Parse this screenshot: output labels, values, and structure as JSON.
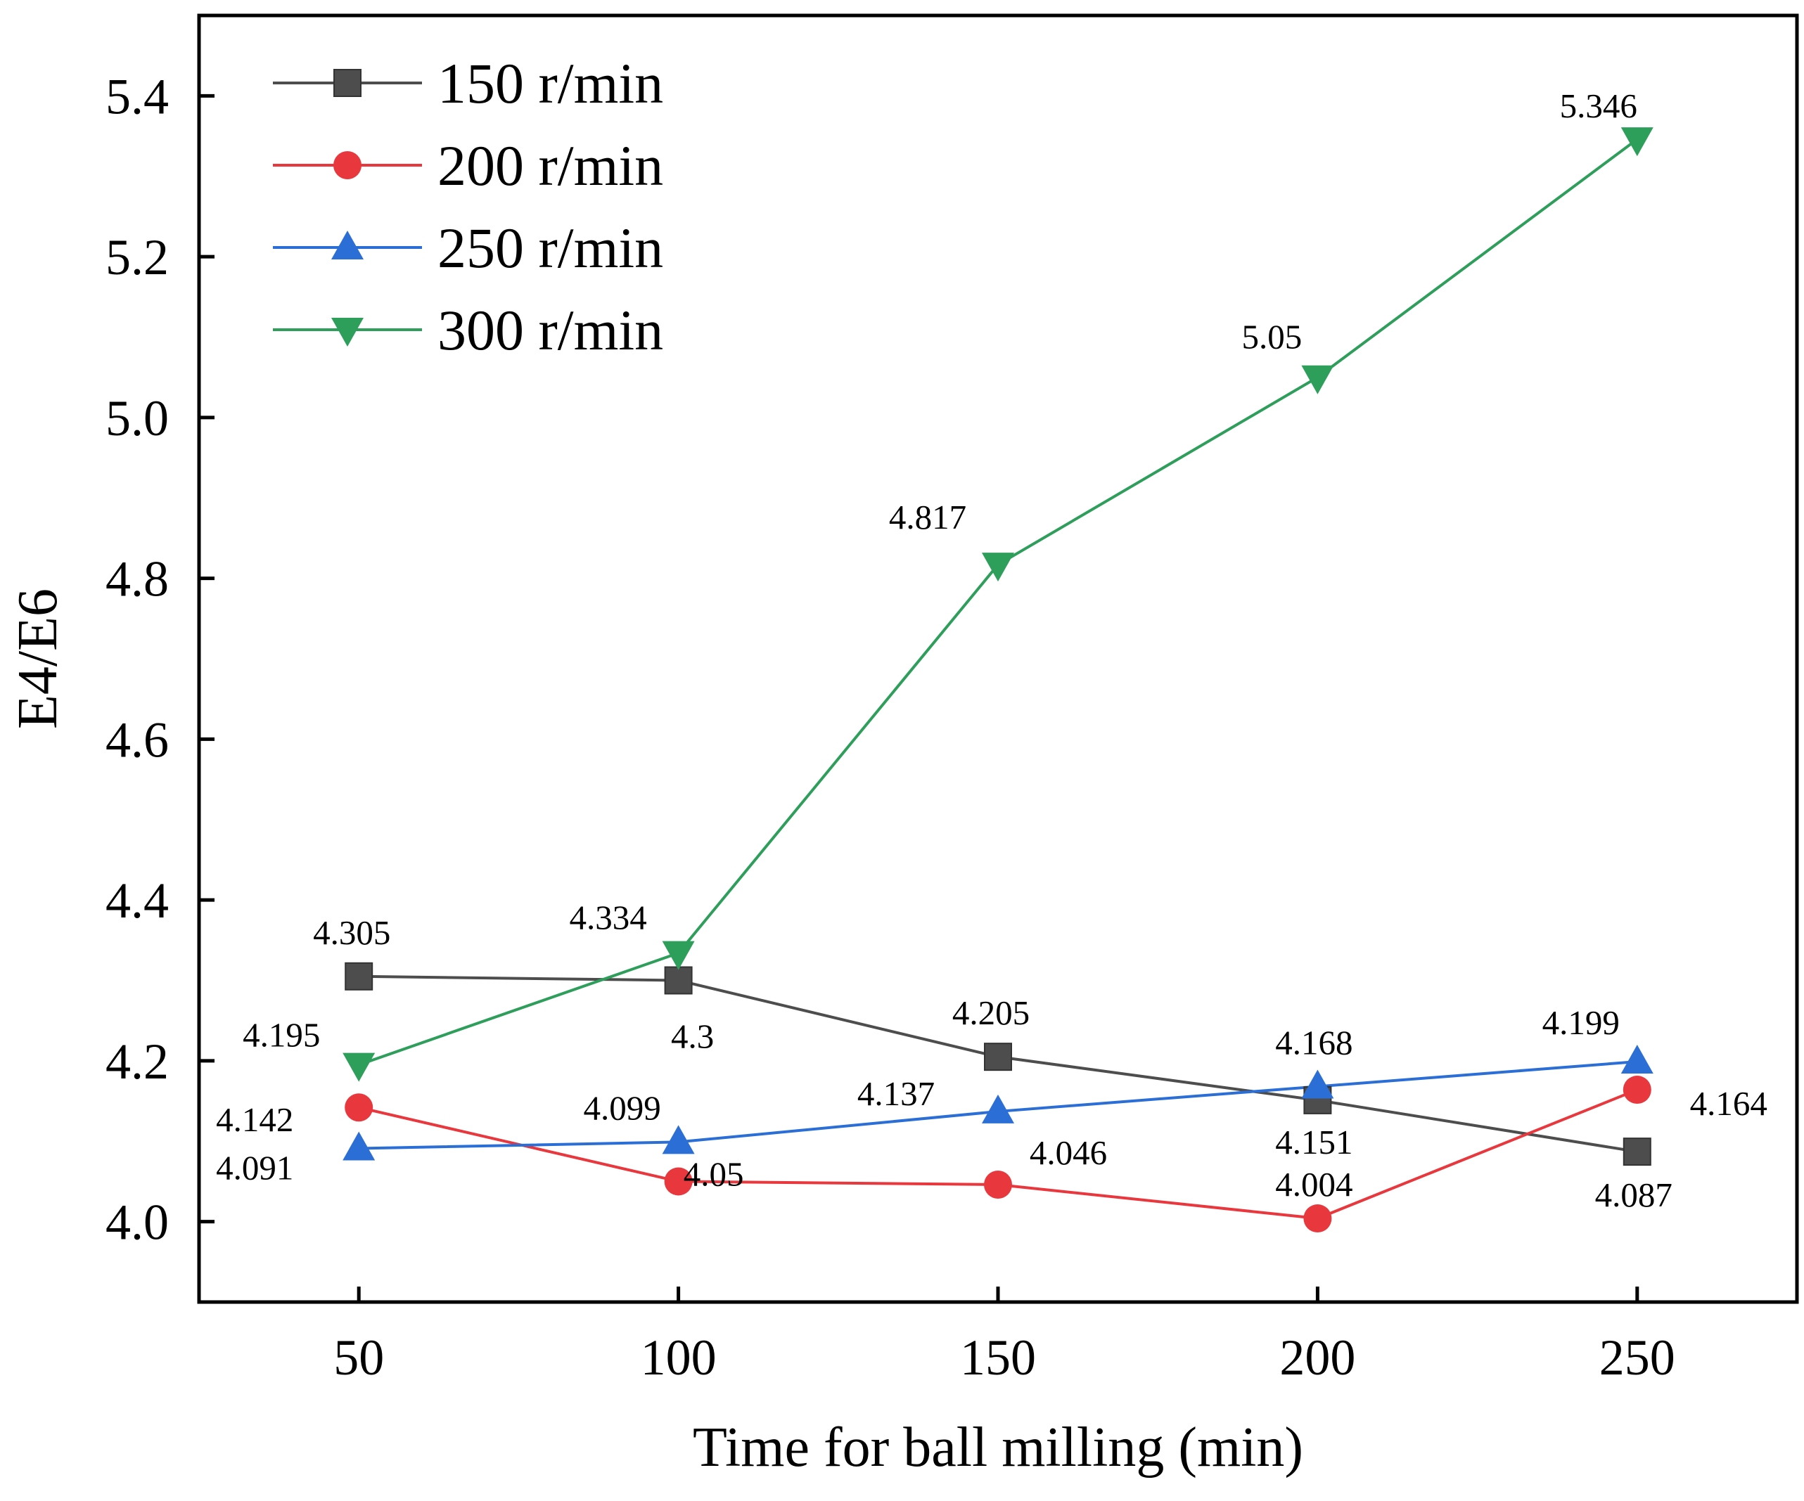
{
  "chart_data": {
    "type": "line",
    "xlabel": "Time for ball milling (min)",
    "ylabel": "E4/E6",
    "xlim": [
      25,
      275
    ],
    "ylim": [
      3.9,
      5.5
    ],
    "x_ticks": [
      "50",
      "100",
      "150",
      "200",
      "250"
    ],
    "y_ticks": [
      "4.0",
      "4.2",
      "4.4",
      "4.6",
      "4.8",
      "5.0",
      "5.2",
      "5.4"
    ],
    "x": [
      50,
      100,
      150,
      200,
      250
    ],
    "legend_position": "top-left",
    "grid": false,
    "series": [
      {
        "name": "150 r/min",
        "color": "#4d4d4d",
        "marker": "square",
        "values": [
          4.305,
          4.3,
          4.205,
          4.151,
          4.087
        ],
        "labels": [
          "4.305",
          "4.3",
          "4.205",
          "4.151",
          "4.087"
        ]
      },
      {
        "name": "200 r/min",
        "color": "#e8383d",
        "marker": "circle",
        "values": [
          4.142,
          4.05,
          4.046,
          4.004,
          4.164
        ],
        "labels": [
          "4.142",
          "4.05",
          "4.046",
          "4.004",
          "4.164"
        ]
      },
      {
        "name": "250 r/min",
        "color": "#2b6fd6",
        "marker": "triangle-up",
        "values": [
          4.091,
          4.099,
          4.137,
          4.168,
          4.199
        ],
        "labels": [
          "4.091",
          "4.099",
          "4.137",
          "4.168",
          "4.199"
        ]
      },
      {
        "name": "300 r/min",
        "color": "#2e9e5b",
        "marker": "triangle-down",
        "values": [
          4.195,
          4.334,
          4.817,
          5.05,
          5.346
        ],
        "labels": [
          "4.195",
          "4.334",
          "4.817",
          "5.05",
          "5.346"
        ]
      }
    ]
  }
}
